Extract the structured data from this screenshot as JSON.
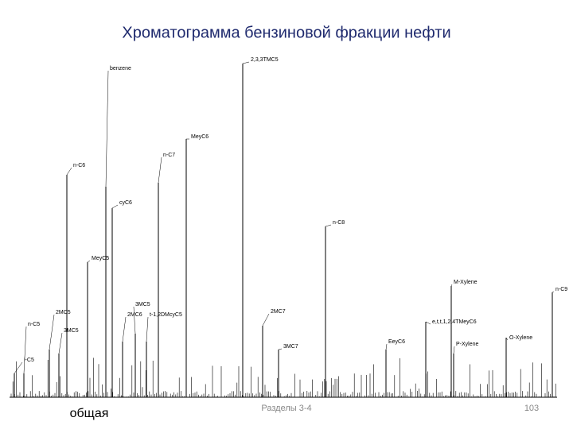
{
  "header": {
    "title": "Хроматограмма бензиновой фракции нефти"
  },
  "chromatogram": {
    "peak_labels": [
      "benzene",
      "2,3,3TMC5",
      "MeyC6",
      "n-C7",
      "n-C6",
      "cyC6",
      "n-C8",
      "MeyC5",
      "M-Xylene",
      "n-C9",
      "3MC5",
      "2MC5",
      "2MC6",
      "t-1,2DMcyC5",
      "n-C5",
      "3MC5",
      "2MC7",
      "e,t,t,1,2,4TMeyC6",
      "EeyC6",
      "P-Xylene",
      "O-Xylene",
      "3MC7",
      "i-C5"
    ]
  },
  "footer": {
    "left": "общая",
    "center": "Разделы 3-4",
    "page": "103"
  }
}
